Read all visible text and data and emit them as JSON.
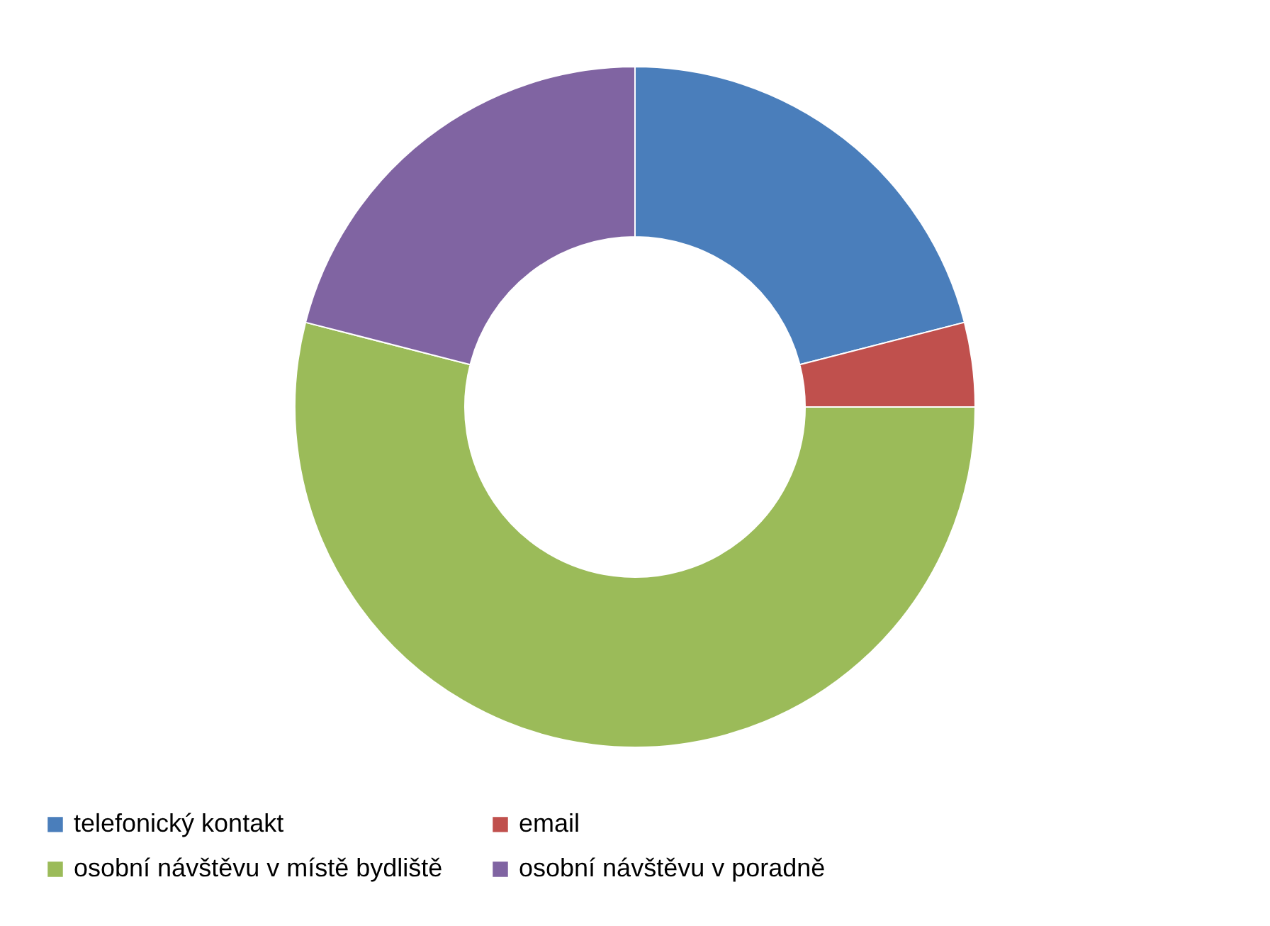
{
  "chart_data": {
    "type": "donut",
    "categories": [
      "telefonický kontakt",
      "email",
      "osobní návštěvu v místě bydliště",
      "osobní návštěvu v poradně"
    ],
    "values": [
      21,
      4,
      54,
      21
    ],
    "colors": [
      "#4a7ebb",
      "#c0504d",
      "#9bbb59",
      "#8064a2"
    ],
    "legend": "bottom"
  }
}
